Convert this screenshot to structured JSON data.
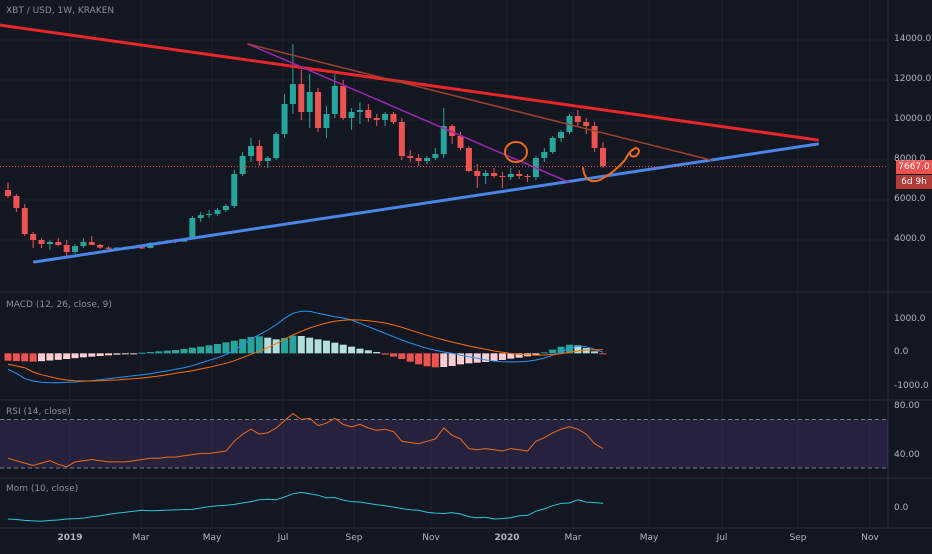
{
  "header": {
    "symbol_line": "XBT / USD, 1W, KRAKEN"
  },
  "price_tag": {
    "value": "7667.0",
    "countdown": "6d 9h"
  },
  "colors": {
    "up": "#26a69a",
    "down": "#ef5350",
    "red_line": "#e8262a",
    "blue_line": "#4a86e8",
    "purple_line": "#9c27b0",
    "orange": "#f06a1a",
    "macd_line": "#2196f3",
    "signal_line": "#ff6d00",
    "hist_up_strong": "#26a69a",
    "hist_up_weak": "#b2dfdb",
    "hist_down_strong": "#ef5350",
    "hist_down_weak": "#ffcdd2",
    "rsi_line": "#f06a1a",
    "rsi_band": "#7e57c2",
    "mom_line": "#26c6da"
  },
  "x_axis": {
    "ticks": [
      "2019",
      "Mar",
      "May",
      "Jul",
      "Sep",
      "Nov",
      "2020",
      "Mar",
      "May",
      "Jul",
      "Sep",
      "Nov"
    ]
  },
  "chart_data": [
    {
      "type": "candlestick",
      "title": "XBT / USD, 1W, KRAKEN",
      "y_ticks": [
        "14000.0",
        "12000.0",
        "10000.0",
        "8000.0",
        "6000.0",
        "4000.0"
      ],
      "ylim": [
        2500,
        15000
      ],
      "ohlc": [
        [
          6500,
          6900,
          6100,
          6200
        ],
        [
          6200,
          6300,
          5400,
          5600
        ],
        [
          5600,
          5800,
          4200,
          4300
        ],
        [
          4300,
          4400,
          3600,
          4000
        ],
        [
          4000,
          4100,
          3600,
          3800
        ],
        [
          3800,
          4000,
          3500,
          3900
        ],
        [
          3900,
          4100,
          3700,
          3750
        ],
        [
          3750,
          4000,
          3200,
          3400
        ],
        [
          3400,
          3800,
          3300,
          3700
        ],
        [
          3700,
          4100,
          3600,
          3900
        ],
        [
          3900,
          4200,
          3750,
          3750
        ],
        [
          3750,
          3800,
          3550,
          3620
        ],
        [
          3620,
          3680,
          3480,
          3560
        ],
        [
          3560,
          3650,
          3500,
          3620
        ],
        [
          3620,
          3680,
          3520,
          3580
        ],
        [
          3580,
          3700,
          3550,
          3630
        ],
        [
          3630,
          3700,
          3550,
          3600
        ],
        [
          3600,
          3900,
          3580,
          3850
        ],
        [
          3850,
          3950,
          3800,
          3880
        ],
        [
          3880,
          4000,
          3820,
          3960
        ],
        [
          3960,
          4050,
          3850,
          3920
        ],
        [
          3920,
          4100,
          3900,
          4080
        ],
        [
          4080,
          5200,
          4050,
          5100
        ],
        [
          5100,
          5400,
          4900,
          5250
        ],
        [
          5250,
          5500,
          5100,
          5300
        ],
        [
          5300,
          5600,
          5200,
          5500
        ],
        [
          5500,
          5800,
          5400,
          5700
        ],
        [
          5700,
          7500,
          5600,
          7300
        ],
        [
          7300,
          8400,
          7200,
          8200
        ],
        [
          8200,
          9100,
          7900,
          8700
        ],
        [
          8700,
          9000,
          7700,
          7950
        ],
        [
          7950,
          8200,
          7600,
          8100
        ],
        [
          8100,
          9400,
          8000,
          9300
        ],
        [
          9300,
          11300,
          9100,
          10800
        ],
        [
          10800,
          13800,
          10300,
          11800
        ],
        [
          11800,
          12500,
          10000,
          10400
        ],
        [
          10400,
          12300,
          9600,
          11400
        ],
        [
          11400,
          11600,
          9400,
          9600
        ],
        [
          9600,
          10700,
          9100,
          10300
        ],
        [
          10300,
          12300,
          10100,
          11700
        ],
        [
          11700,
          12000,
          10000,
          10100
        ],
        [
          10100,
          10600,
          9500,
          10400
        ],
        [
          10400,
          10900,
          9800,
          10500
        ],
        [
          10500,
          10800,
          9900,
          10100
        ],
        [
          10100,
          10300,
          9700,
          10000
        ],
        [
          10000,
          10400,
          9700,
          10300
        ],
        [
          10300,
          10400,
          9800,
          9900
        ],
        [
          9900,
          10100,
          8000,
          8200
        ],
        [
          8200,
          8500,
          7900,
          8100
        ],
        [
          8100,
          8300,
          7700,
          7950
        ],
        [
          7950,
          8200,
          7800,
          8100
        ],
        [
          8100,
          8600,
          8000,
          8300
        ],
        [
          8300,
          10600,
          8100,
          9700
        ],
        [
          9700,
          9800,
          8800,
          9200
        ],
        [
          9200,
          9400,
          8500,
          8600
        ],
        [
          8600,
          8700,
          7400,
          7450
        ],
        [
          7450,
          7800,
          6600,
          7200
        ],
        [
          7200,
          7500,
          6800,
          7350
        ],
        [
          7350,
          7600,
          7100,
          7200
        ],
        [
          7200,
          7400,
          6600,
          7150
        ],
        [
          7150,
          7600,
          7000,
          7300
        ],
        [
          7300,
          7500,
          7050,
          7200
        ],
        [
          7200,
          7300,
          6900,
          7150
        ],
        [
          7150,
          8200,
          7000,
          8100
        ],
        [
          8100,
          8600,
          7900,
          8400
        ],
        [
          8400,
          9200,
          8300,
          9100
        ],
        [
          9100,
          9500,
          8900,
          9400
        ],
        [
          9400,
          10300,
          9300,
          10200
        ],
        [
          10200,
          10500,
          9700,
          9900
        ],
        [
          9900,
          10100,
          9300,
          9700
        ],
        [
          9700,
          9900,
          8400,
          8600
        ],
        [
          8600,
          8900,
          7600,
          7700
        ]
      ],
      "lines": [
        {
          "name": "red_trendline",
          "points": [
            [
              "2018-06",
              16000
            ],
            [
              "2020-10",
              9000
            ]
          ]
        },
        {
          "name": "blue_support",
          "points": [
            [
              "2018-12",
              2900
            ],
            [
              "2020-10",
              8800
            ]
          ]
        },
        {
          "name": "purple_line",
          "points": [
            [
              "2019-06",
              13800
            ],
            [
              "2020-03",
              6900
            ]
          ]
        },
        {
          "name": "brown_line",
          "points": [
            [
              "2019-06",
              13800
            ],
            [
              "2020-07",
              8000
            ]
          ]
        }
      ]
    },
    {
      "type": "macd",
      "title": "MACD (12, 26, close, 9)",
      "y_ticks": [
        "1000.0",
        "0.0",
        "-1000.0"
      ],
      "ylim": [
        -1250,
        1600
      ],
      "histogram": [
        -220,
        -230,
        -240,
        -250,
        -235,
        -215,
        -195,
        -170,
        -145,
        -120,
        -100,
        -80,
        -60,
        -40,
        -20,
        -10,
        20,
        40,
        60,
        80,
        100,
        130,
        170,
        200,
        240,
        280,
        330,
        380,
        430,
        490,
        510,
        470,
        420,
        460,
        530,
        520,
        470,
        420,
        380,
        320,
        260,
        200,
        140,
        90,
        40,
        -40,
        -100,
        -170,
        -250,
        -330,
        -390,
        -420,
        -410,
        -380,
        -330,
        -300,
        -280,
        -260,
        -230,
        -200,
        -160,
        -130,
        -90,
        -50,
        30,
        110,
        200,
        260,
        240,
        160,
        60,
        -20
      ],
      "macd": [
        -480,
        -600,
        -760,
        -830,
        -870,
        -880,
        -880,
        -870,
        -860,
        -840,
        -820,
        -790,
        -760,
        -730,
        -700,
        -670,
        -640,
        -610,
        -570,
        -530,
        -480,
        -430,
        -370,
        -290,
        -210,
        -130,
        -40,
        90,
        260,
        430,
        560,
        700,
        860,
        1050,
        1200,
        1260,
        1260,
        1200,
        1150,
        1100,
        1060,
        1000,
        900,
        800,
        700,
        600,
        500,
        400,
        310,
        230,
        150,
        90,
        40,
        0,
        -60,
        -100,
        -150,
        -200,
        -230,
        -250,
        -260,
        -255,
        -240,
        -200,
        -140,
        -60,
        50,
        150,
        220,
        200,
        120,
        30
      ],
      "signal": [
        -330,
        -380,
        -430,
        -560,
        -640,
        -700,
        -760,
        -800,
        -820,
        -830,
        -830,
        -820,
        -810,
        -800,
        -780,
        -760,
        -740,
        -710,
        -680,
        -640,
        -600,
        -560,
        -520,
        -470,
        -420,
        -360,
        -300,
        -220,
        -130,
        -30,
        60,
        170,
        290,
        420,
        550,
        660,
        760,
        840,
        910,
        960,
        990,
        1010,
        1000,
        980,
        950,
        910,
        850,
        780,
        700,
        620,
        540,
        470,
        400,
        340,
        280,
        220,
        170,
        120,
        70,
        30,
        -5,
        -30,
        -45,
        -55,
        -50,
        -35,
        -10,
        30,
        70,
        100,
        110,
        105
      ]
    },
    {
      "type": "rsi",
      "title": "RSI (14, close)",
      "y_ticks": [
        "80.00",
        "40.00"
      ],
      "band": [
        30,
        70
      ],
      "ylim": [
        25,
        82
      ],
      "values": [
        38,
        36,
        34,
        32,
        34,
        36,
        33,
        31,
        35,
        36,
        37,
        36,
        35,
        35,
        35,
        36,
        37,
        38,
        38,
        39,
        39,
        40,
        41,
        42,
        42,
        43,
        44,
        52,
        58,
        62,
        58,
        59,
        63,
        69,
        75,
        70,
        71,
        65,
        67,
        71,
        66,
        64,
        66,
        63,
        61,
        62,
        60,
        52,
        51,
        50,
        52,
        54,
        63,
        57,
        54,
        46,
        45,
        46,
        45,
        44,
        46,
        45,
        44,
        52,
        55,
        59,
        62,
        64,
        62,
        58,
        50,
        46
      ]
    },
    {
      "type": "line",
      "title": "Mom (10, close)",
      "y_ticks": [
        "0.0"
      ],
      "ylim": [
        -3500,
        5000
      ],
      "values": [
        -2200,
        -2300,
        -2500,
        -2600,
        -2700,
        -2500,
        -2400,
        -2200,
        -2100,
        -2000,
        -1700,
        -1500,
        -1200,
        -900,
        -700,
        -500,
        -300,
        -400,
        -350,
        -250,
        -200,
        -150,
        -100,
        200,
        500,
        700,
        800,
        1000,
        1300,
        1600,
        2000,
        2100,
        2000,
        2600,
        3300,
        3600,
        3300,
        3000,
        2400,
        2500,
        1900,
        1600,
        1500,
        1200,
        900,
        700,
        400,
        100,
        -200,
        -300,
        -700,
        -900,
        -1000,
        -800,
        -1100,
        -1700,
        -1900,
        -1800,
        -2200,
        -2100,
        -1900,
        -1500,
        -1400,
        -500,
        0,
        700,
        1200,
        1300,
        2000,
        1500,
        1400,
        1200
      ]
    }
  ]
}
